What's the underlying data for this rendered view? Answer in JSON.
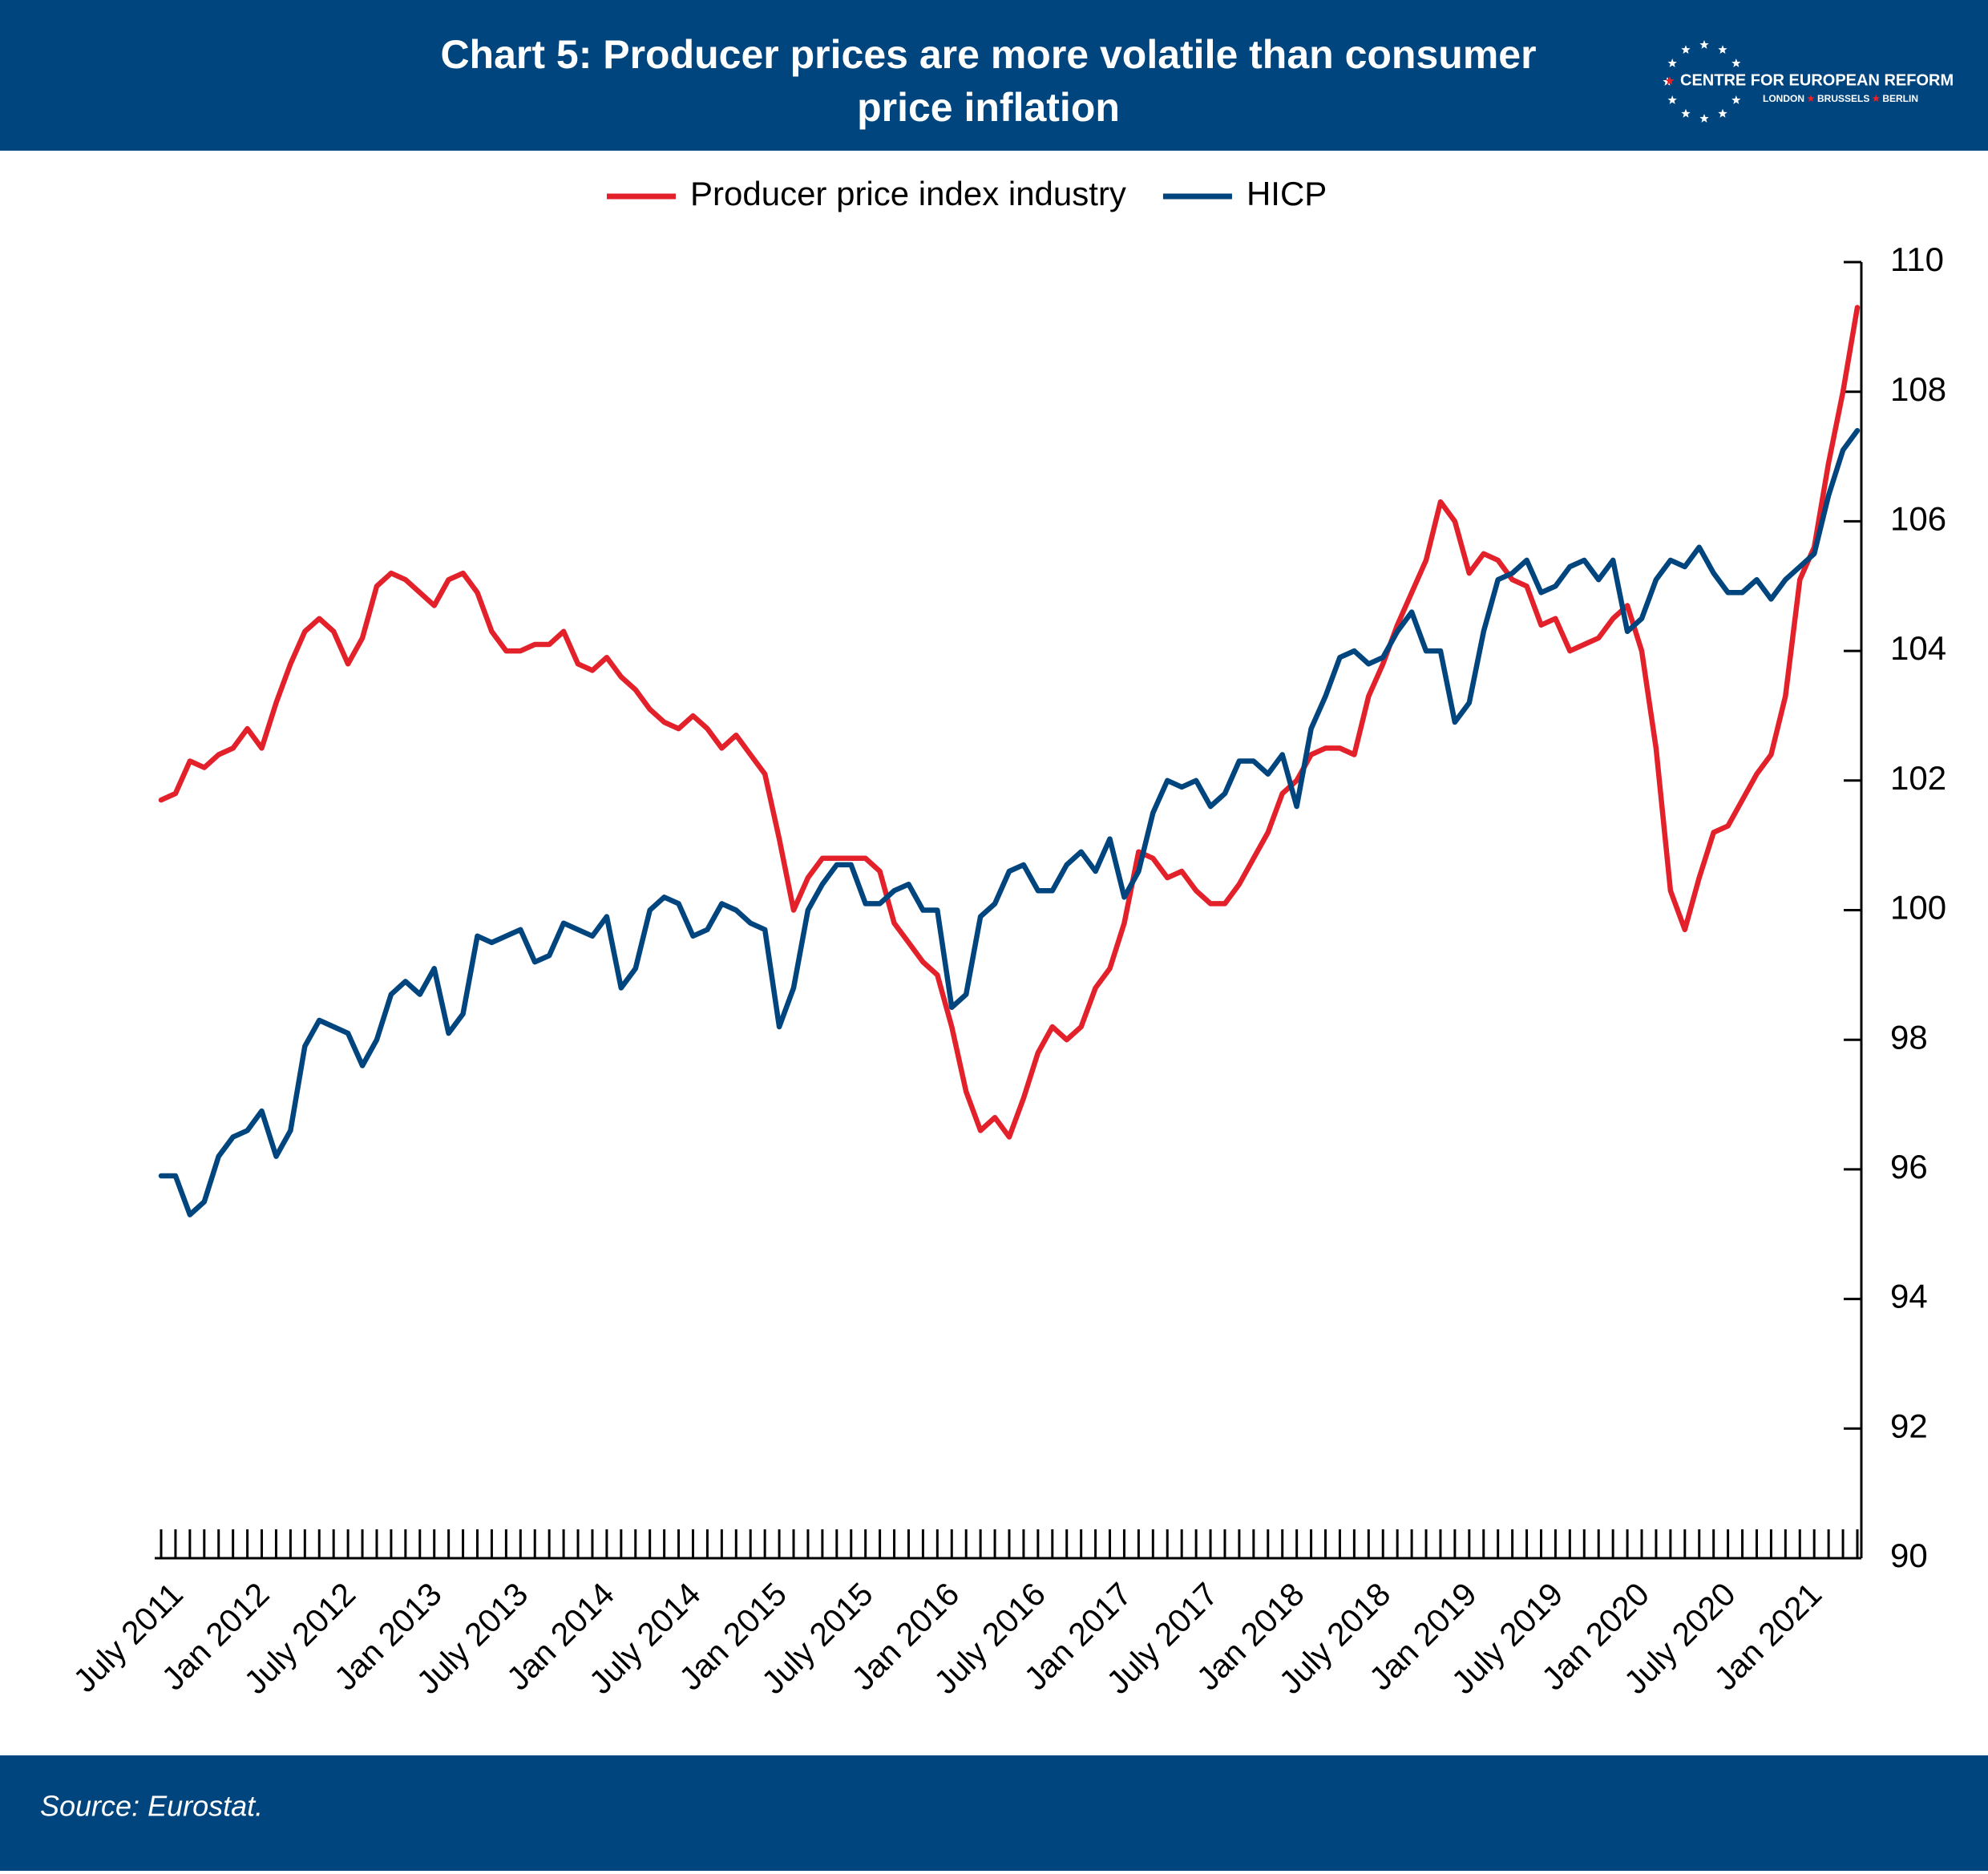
{
  "chart_data": {
    "type": "line",
    "title": [
      "Chart 5: Producer prices are more volatile than consumer",
      "price inflation"
    ],
    "logo": {
      "name": "CENTRE FOR EUROPEAN REFORM",
      "cities": [
        "LONDON",
        "BRUSSELS",
        "BERLIN"
      ]
    },
    "source": "Source: Eurostat.",
    "categories": [
      "July 2011",
      null,
      null,
      null,
      null,
      null,
      "Jan 2012",
      null,
      null,
      null,
      null,
      null,
      "July 2012",
      null,
      null,
      null,
      null,
      null,
      "Jan 2013",
      null,
      null,
      null,
      null,
      null,
      "July 2013",
      null,
      null,
      null,
      null,
      null,
      "Jan 2014",
      null,
      null,
      null,
      null,
      null,
      "July 2014",
      null,
      null,
      null,
      null,
      null,
      "Jan 2015",
      null,
      null,
      null,
      null,
      null,
      "July 2015",
      null,
      null,
      null,
      null,
      null,
      "Jan 2016",
      null,
      null,
      null,
      null,
      null,
      "July 2016",
      null,
      null,
      null,
      null,
      null,
      "Jan 2017",
      null,
      null,
      null,
      null,
      null,
      "July 2017",
      null,
      null,
      null,
      null,
      null,
      "Jan 2018",
      null,
      null,
      null,
      null,
      null,
      "July 2018",
      null,
      null,
      null,
      null,
      null,
      "Jan 2019",
      null,
      null,
      null,
      null,
      null,
      "July 2019",
      null,
      null,
      null,
      null,
      null,
      "Jan 2020",
      null,
      null,
      null,
      null,
      null,
      "July 2020",
      null,
      null,
      null,
      null,
      null,
      "Jan 2021",
      null,
      null,
      null,
      null
    ],
    "series": [
      {
        "name": "Producer price index industry",
        "color": "#e3212b",
        "values": [
          101.7,
          101.8,
          102.3,
          102.2,
          102.4,
          102.5,
          102.8,
          102.5,
          103.2,
          103.8,
          104.3,
          104.5,
          104.3,
          103.8,
          104.2,
          105.0,
          105.2,
          105.1,
          104.9,
          104.7,
          105.1,
          105.2,
          104.9,
          104.3,
          104.0,
          104.0,
          104.1,
          104.1,
          104.3,
          103.8,
          103.7,
          103.9,
          103.6,
          103.4,
          103.1,
          102.9,
          102.8,
          103.0,
          102.8,
          102.5,
          102.7,
          102.4,
          102.1,
          101.1,
          100.0,
          100.5,
          100.8,
          100.8,
          100.8,
          100.8,
          100.6,
          99.8,
          99.5,
          99.2,
          99.0,
          98.2,
          97.2,
          96.6,
          96.8,
          96.5,
          97.1,
          97.8,
          98.2,
          98.0,
          98.2,
          98.8,
          99.1,
          99.8,
          100.9,
          100.8,
          100.5,
          100.6,
          100.3,
          100.1,
          100.1,
          100.4,
          100.8,
          101.2,
          101.8,
          102.0,
          102.4,
          102.5,
          102.5,
          102.4,
          103.3,
          103.8,
          104.4,
          104.9,
          105.4,
          106.3,
          106.0,
          105.2,
          105.5,
          105.4,
          105.1,
          105.0,
          104.4,
          104.5,
          104.0,
          104.1,
          104.2,
          104.5,
          104.7,
          104.0,
          102.5,
          100.3,
          99.7,
          100.5,
          101.2,
          101.3,
          101.7,
          102.1,
          102.4,
          103.3,
          105.1,
          105.6,
          106.9,
          108.0,
          109.3
        ]
      },
      {
        "name": "HICP",
        "color": "#00457e",
        "values": [
          95.9,
          95.9,
          95.3,
          95.5,
          96.2,
          96.5,
          96.6,
          96.9,
          96.2,
          96.6,
          97.9,
          98.3,
          98.2,
          98.1,
          97.6,
          98.0,
          98.7,
          98.9,
          98.7,
          99.1,
          98.1,
          98.4,
          99.6,
          99.5,
          99.6,
          99.7,
          99.2,
          99.3,
          99.8,
          99.7,
          99.6,
          99.9,
          98.8,
          99.1,
          100.0,
          100.2,
          100.1,
          99.6,
          99.7,
          100.1,
          100.0,
          99.8,
          99.7,
          98.2,
          98.8,
          100.0,
          100.4,
          100.7,
          100.7,
          100.1,
          100.1,
          100.3,
          100.4,
          100.0,
          100.0,
          98.5,
          98.7,
          99.9,
          100.1,
          100.6,
          100.7,
          100.3,
          100.3,
          100.7,
          100.9,
          100.6,
          101.1,
          100.2,
          100.6,
          101.5,
          102.0,
          101.9,
          102.0,
          101.6,
          101.8,
          102.3,
          102.3,
          102.1,
          102.4,
          101.6,
          102.8,
          103.3,
          103.9,
          104.0,
          103.8,
          103.9,
          104.3,
          104.6,
          104.0,
          104.0,
          102.9,
          103.2,
          104.3,
          105.1,
          105.2,
          105.4,
          104.9,
          105.0,
          105.3,
          105.4,
          105.1,
          105.4,
          104.3,
          104.5,
          105.1,
          105.4,
          105.3,
          105.6,
          105.2,
          104.9,
          104.9,
          105.1,
          104.8,
          105.1,
          105.3,
          105.5,
          106.4,
          107.1,
          107.4
        ]
      }
    ],
    "ylim": [
      90,
      110
    ],
    "yticks": [
      90,
      92,
      94,
      96,
      98,
      100,
      102,
      104,
      106,
      108,
      110
    ],
    "y_axis_side": "right",
    "legend": "top",
    "grid": false
  }
}
